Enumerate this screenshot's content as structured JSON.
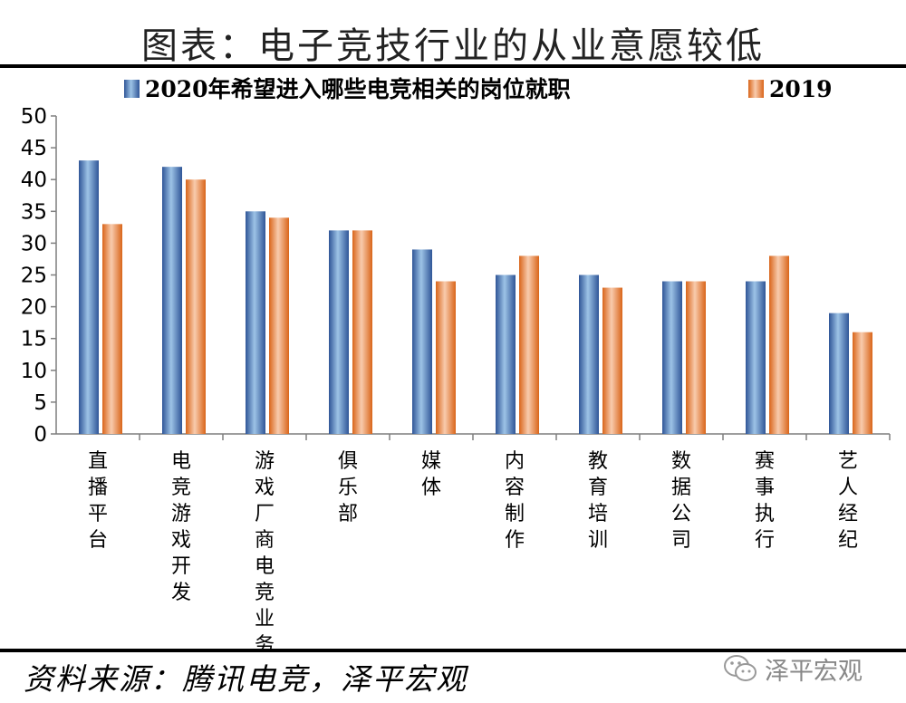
{
  "title": "图表：电子竞技行业的从业意愿较低",
  "source": "资料来源：腾讯电竞，泽平宏观",
  "brand": {
    "name": "泽平宏观",
    "icon": "wechat-icon"
  },
  "colors": {
    "series1": "#4472C4",
    "series2": "#ED7D31"
  },
  "chart_data": {
    "type": "bar",
    "title": "",
    "xlabel": "",
    "ylabel": "",
    "ylim": [
      0,
      50
    ],
    "yticks": [
      0,
      5,
      10,
      15,
      20,
      25,
      30,
      35,
      40,
      45,
      50
    ],
    "legend_position": "top",
    "grid": false,
    "categories": [
      "直播平台",
      "电竞游戏开发",
      "游戏厂商电竞业务",
      "俱乐部",
      "媒体",
      "内容制作",
      "教育培训",
      "数据公司",
      "赛事执行",
      "艺人经纪"
    ],
    "series": [
      {
        "name": "2020年希望进入哪些电竞相关的岗位就职",
        "values": [
          43,
          42,
          35,
          32,
          29,
          25,
          25,
          24,
          24,
          19
        ]
      },
      {
        "name": "2019",
        "values": [
          33,
          40,
          34,
          32,
          24,
          28,
          23,
          24,
          28,
          16
        ]
      }
    ]
  }
}
